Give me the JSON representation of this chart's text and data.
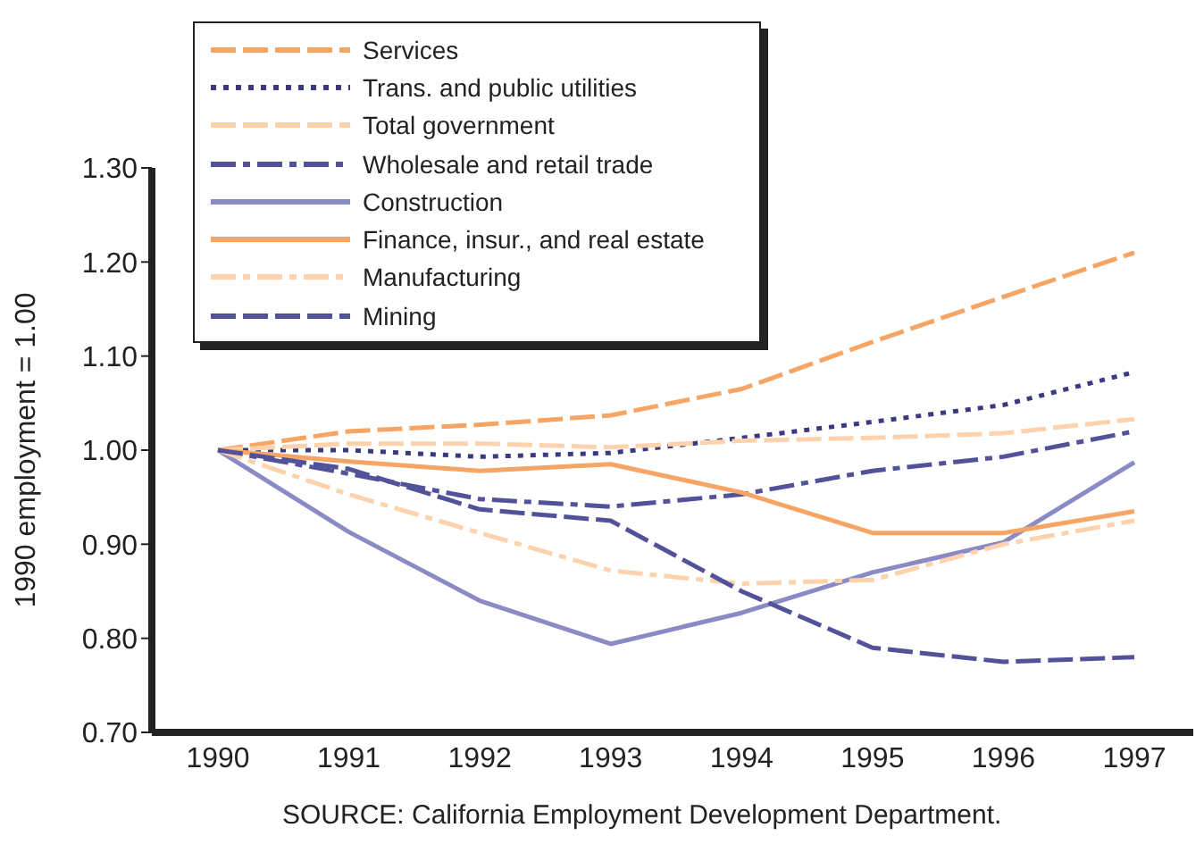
{
  "chart_data": {
    "type": "line",
    "ylabel": "1990 employment = 1.00",
    "categories": [
      "1990",
      "1991",
      "1992",
      "1993",
      "1994",
      "1995",
      "1996",
      "1997"
    ],
    "series": [
      {
        "name": "Services",
        "color": "#f6a564",
        "line_style": "dashed",
        "values": [
          1.0,
          1.02,
          1.027,
          1.037,
          1.065,
          1.115,
          1.163,
          1.21
        ]
      },
      {
        "name": "Trans. and public utilities",
        "color": "#3a3a80",
        "line_style": "dotted",
        "values": [
          1.0,
          1.0,
          0.993,
          0.997,
          1.013,
          1.03,
          1.048,
          1.083
        ]
      },
      {
        "name": "Total government",
        "color": "#fdd2ac",
        "line_style": "dashed",
        "values": [
          1.0,
          1.007,
          1.007,
          1.003,
          1.01,
          1.013,
          1.018,
          1.033
        ]
      },
      {
        "name": "Wholesale and retail trade",
        "color": "#52529a",
        "line_style": "dashdot",
        "values": [
          1.0,
          0.975,
          0.948,
          0.94,
          0.953,
          0.978,
          0.993,
          1.02
        ]
      },
      {
        "name": "Construction",
        "color": "#8a8ac4",
        "line_style": "solid",
        "values": [
          1.0,
          0.913,
          0.84,
          0.794,
          0.827,
          0.87,
          0.902,
          0.987
        ]
      },
      {
        "name": "Finance, insur., and real estate",
        "color": "#f6a564",
        "line_style": "solid",
        "values": [
          1.0,
          0.988,
          0.978,
          0.985,
          0.955,
          0.912,
          0.912,
          0.935
        ]
      },
      {
        "name": "Manufacturing",
        "color": "#fdd2ac",
        "line_style": "dashdot",
        "values": [
          1.0,
          0.953,
          0.912,
          0.872,
          0.858,
          0.862,
          0.9,
          0.925
        ]
      },
      {
        "name": "Mining",
        "color": "#52529a",
        "line_style": "dashed",
        "values": [
          1.0,
          0.98,
          0.937,
          0.925,
          0.85,
          0.79,
          0.775,
          0.78
        ]
      }
    ],
    "ylim": [
      0.7,
      1.3
    ],
    "yticks": [
      {
        "value": 0.7,
        "label": "0.70"
      },
      {
        "value": 0.8,
        "label": "0.80"
      },
      {
        "value": 0.9,
        "label": "0.90"
      },
      {
        "value": 1.0,
        "label": "1.00"
      },
      {
        "value": 1.1,
        "label": "1.10"
      },
      {
        "value": 1.2,
        "label": "1.20"
      },
      {
        "value": 1.3,
        "label": "1.30"
      }
    ],
    "grid": false,
    "legend": "top left",
    "marker": "none",
    "annotations": [
      "SOURCE:  California Employment Development Department."
    ]
  }
}
